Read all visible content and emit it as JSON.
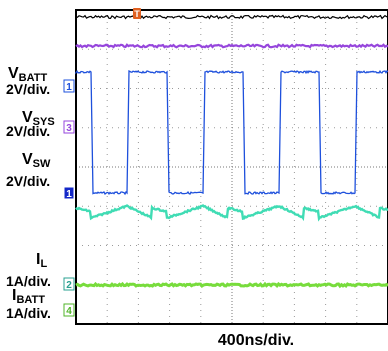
{
  "chart_data": {
    "type": "line",
    "title": "",
    "xlabel": "400ns/div.",
    "x_div_count": 10,
    "y_div_count": 8,
    "grid": true,
    "channels": [
      {
        "number": "1",
        "name_main": "V",
        "name_sub": "SW",
        "scale": "2V/div.",
        "color": "#1e50dc",
        "marker_bg": "#1428c8",
        "marker_fg": "#ffffff",
        "waveform": "switching-pulse"
      },
      {
        "number": "2",
        "name_main": "I",
        "name_sub": "L",
        "scale": "1A/div.",
        "color": "#40dcb4",
        "marker_bg": "#ffffff",
        "marker_fg": "#2aa090",
        "waveform": "sawtooth"
      },
      {
        "number": "3",
        "name_main": "V",
        "name_sub": "SYS",
        "scale": "2V/div.",
        "color": "#9646dc",
        "marker_bg": "#ffffff",
        "marker_fg": "#9646dc",
        "waveform": "flat"
      },
      {
        "number": "4",
        "name_main": "I",
        "name_sub": "BATT",
        "scale": "1A/div.",
        "color": "#78dc3c",
        "marker_bg": "#ffffff",
        "marker_fg": "#50b428",
        "waveform": "flat"
      },
      {
        "number": "",
        "name_main": "V",
        "name_sub": "BATT",
        "scale": "2V/div.",
        "color": "#000000",
        "waveform": "flat"
      }
    ],
    "trigger_marker": {
      "label": "T",
      "color": "#e06020"
    }
  }
}
